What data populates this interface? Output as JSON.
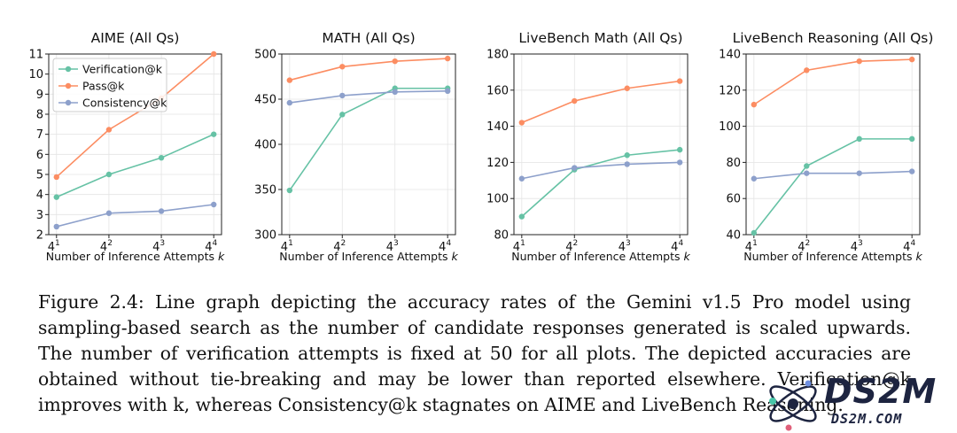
{
  "figure": {
    "caption": "Figure 2.4: Line graph depicting the accuracy rates of the Gemini v1.5 Pro model using sampling-based search as the number of candidate responses generated is scaled upwards. The number of verification attempts is fixed at 50 for all plots. The depicted accuracies are obtained without tie-breaking and may be lower than reported elsewhere. Verification@k improves with k, whereas Consistency@k stagnates on AIME and LiveBench Reasoning.",
    "watermark_brand": "DS2M",
    "watermark_site": "DS2M.COM"
  },
  "colors": {
    "Verification@k": "#66c2a5",
    "Pass@k": "#fc8d62",
    "Consistency@k": "#8da0cb"
  },
  "chart_data": [
    {
      "type": "line",
      "title": "AIME (All Qs)",
      "xlabel": "Number of Inference Attempts k",
      "x": [
        "4^1",
        "4^2",
        "4^3",
        "4^4"
      ],
      "ylim": [
        2,
        11
      ],
      "yticks": [
        2,
        3,
        4,
        5,
        6,
        7,
        8,
        9,
        10,
        11
      ],
      "grid": true,
      "legend": "top-left",
      "series": [
        {
          "name": "Verification@k",
          "values": [
            3.87,
            5.0,
            5.83,
            7.0
          ]
        },
        {
          "name": "Pass@k",
          "values": [
            4.87,
            7.23,
            8.8,
            11.0
          ]
        },
        {
          "name": "Consistency@k",
          "values": [
            2.4,
            3.07,
            3.17,
            3.5
          ]
        }
      ]
    },
    {
      "type": "line",
      "title": "MATH (All Qs)",
      "xlabel": "Number of Inference Attempts k",
      "x": [
        "4^1",
        "4^2",
        "4^3",
        "4^4"
      ],
      "ylim": [
        300,
        500
      ],
      "yticks": [
        300,
        350,
        400,
        450,
        500
      ],
      "grid": true,
      "series": [
        {
          "name": "Verification@k",
          "values": [
            349,
            433,
            462,
            462
          ]
        },
        {
          "name": "Pass@k",
          "values": [
            471,
            486,
            492,
            495
          ]
        },
        {
          "name": "Consistency@k",
          "values": [
            446,
            454,
            458,
            459
          ]
        }
      ]
    },
    {
      "type": "line",
      "title": "LiveBench Math (All Qs)",
      "xlabel": "Number of Inference Attempts k",
      "x": [
        "4^1",
        "4^2",
        "4^3",
        "4^4"
      ],
      "ylim": [
        80,
        180
      ],
      "yticks": [
        80,
        100,
        120,
        140,
        160,
        180
      ],
      "grid": true,
      "series": [
        {
          "name": "Verification@k",
          "values": [
            90,
            116,
            124,
            127
          ]
        },
        {
          "name": "Pass@k",
          "values": [
            142,
            154,
            161,
            165
          ]
        },
        {
          "name": "Consistency@k",
          "values": [
            111,
            117,
            119,
            120
          ]
        }
      ]
    },
    {
      "type": "line",
      "title": "LiveBench Reasoning (All Qs)",
      "xlabel": "Number of Inference Attempts k",
      "x": [
        "4^1",
        "4^2",
        "4^3",
        "4^4"
      ],
      "ylim": [
        40,
        140
      ],
      "yticks": [
        40,
        60,
        80,
        100,
        120,
        140
      ],
      "grid": true,
      "series": [
        {
          "name": "Verification@k",
          "values": [
            41,
            78,
            93,
            93
          ]
        },
        {
          "name": "Pass@k",
          "values": [
            112,
            131,
            136,
            137
          ]
        },
        {
          "name": "Consistency@k",
          "values": [
            71,
            74,
            74,
            75
          ]
        }
      ]
    }
  ]
}
